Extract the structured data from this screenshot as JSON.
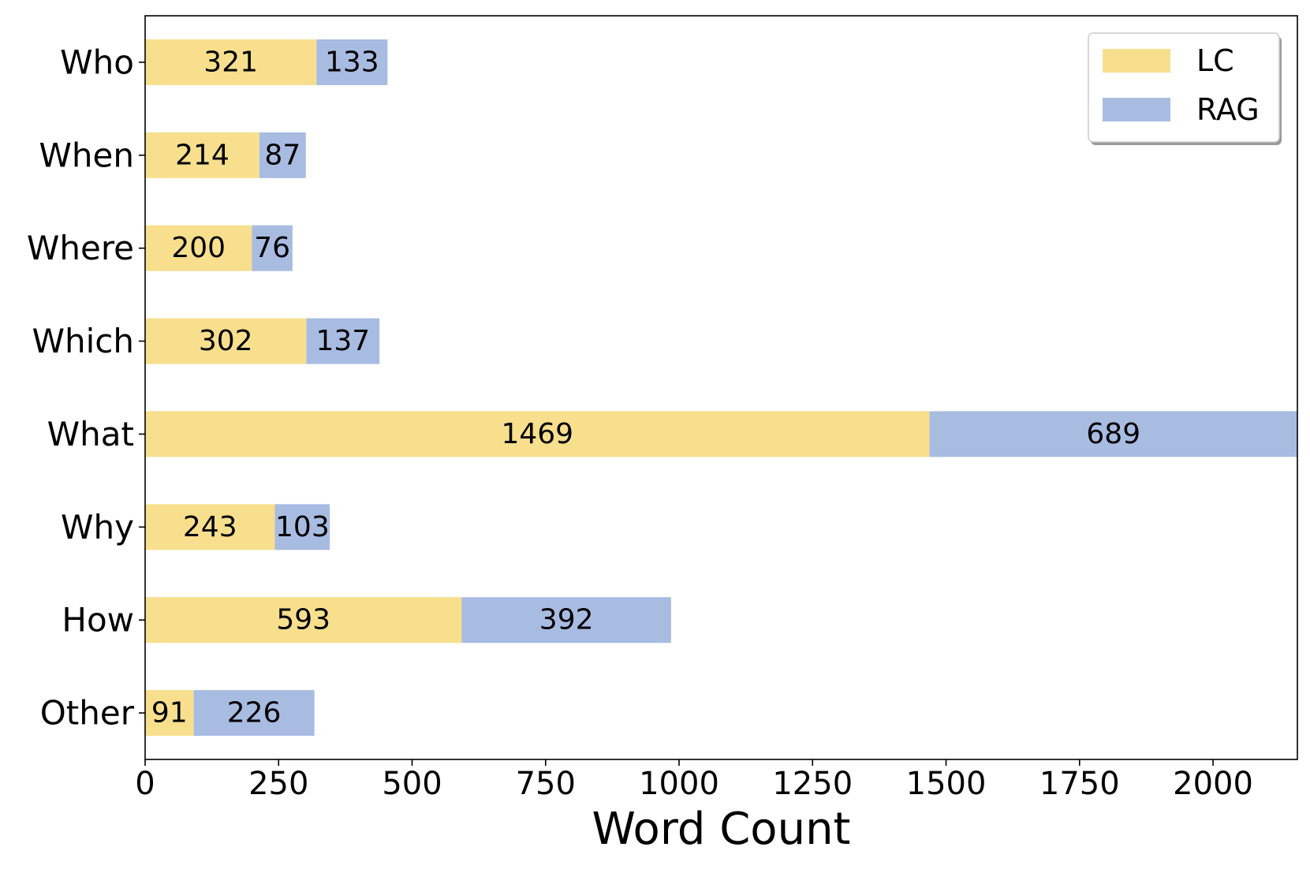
{
  "chart_data": {
    "type": "bar",
    "orientation": "horizontal",
    "stacked": true,
    "categories": [
      "Who",
      "When",
      "Where",
      "Which",
      "What",
      "Why",
      "How",
      "Other"
    ],
    "series": [
      {
        "name": "LC",
        "values": [
          321,
          214,
          200,
          302,
          1469,
          243,
          593,
          91
        ],
        "color": "#F7DF8E"
      },
      {
        "name": "RAG",
        "values": [
          133,
          87,
          76,
          137,
          689,
          103,
          392,
          226
        ],
        "color": "#A8BCE2"
      }
    ],
    "xlabel": "Word Count",
    "ylabel": "",
    "xlim": [
      0,
      2158
    ],
    "xticks": [
      0,
      250,
      500,
      750,
      1000,
      1250,
      1500,
      1750,
      2000
    ],
    "xtick_labels": [
      "0",
      "250",
      "500",
      "750",
      "1000",
      "1250",
      "1500",
      "1750",
      "2000"
    ],
    "grid": false,
    "legend_position": "top-right",
    "data_labels": true
  }
}
